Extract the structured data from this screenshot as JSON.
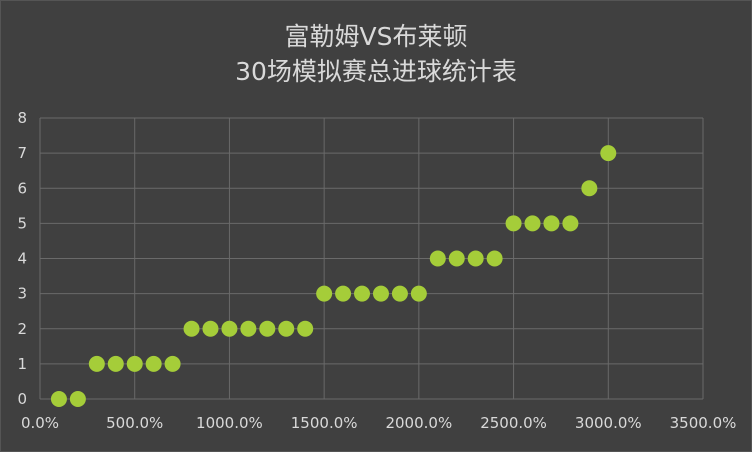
{
  "chart_data": {
    "type": "scatter",
    "title_lines": [
      "富勒姆VS布莱顿",
      "30场模拟赛总进球统计表"
    ],
    "xlabel": "",
    "ylabel": "",
    "xlim": [
      0,
      3500
    ],
    "ylim": [
      0,
      8
    ],
    "x_ticks": [
      0,
      500,
      1000,
      1500,
      2000,
      2500,
      3000,
      3500
    ],
    "x_tick_labels": [
      "0.0%",
      "500.0%",
      "1000.0%",
      "1500.0%",
      "2000.0%",
      "2500.0%",
      "3000.0%",
      "3500.0%"
    ],
    "y_ticks": [
      0,
      1,
      2,
      3,
      4,
      5,
      6,
      7,
      8
    ],
    "y_tick_labels": [
      "0",
      "1",
      "2",
      "3",
      "4",
      "5",
      "6",
      "7",
      "8"
    ],
    "grid": true,
    "series": [
      {
        "color": "#a5cd39",
        "points": [
          {
            "x": 100,
            "y": 0
          },
          {
            "x": 200,
            "y": 0
          },
          {
            "x": 300,
            "y": 1
          },
          {
            "x": 400,
            "y": 1
          },
          {
            "x": 500,
            "y": 1
          },
          {
            "x": 600,
            "y": 1
          },
          {
            "x": 700,
            "y": 1
          },
          {
            "x": 800,
            "y": 2
          },
          {
            "x": 900,
            "y": 2
          },
          {
            "x": 1000,
            "y": 2
          },
          {
            "x": 1100,
            "y": 2
          },
          {
            "x": 1200,
            "y": 2
          },
          {
            "x": 1300,
            "y": 2
          },
          {
            "x": 1400,
            "y": 2
          },
          {
            "x": 1500,
            "y": 3
          },
          {
            "x": 1600,
            "y": 3
          },
          {
            "x": 1700,
            "y": 3
          },
          {
            "x": 1800,
            "y": 3
          },
          {
            "x": 1900,
            "y": 3
          },
          {
            "x": 2000,
            "y": 3
          },
          {
            "x": 2100,
            "y": 4
          },
          {
            "x": 2200,
            "y": 4
          },
          {
            "x": 2300,
            "y": 4
          },
          {
            "x": 2400,
            "y": 4
          },
          {
            "x": 2500,
            "y": 5
          },
          {
            "x": 2600,
            "y": 5
          },
          {
            "x": 2700,
            "y": 5
          },
          {
            "x": 2800,
            "y": 5
          },
          {
            "x": 2900,
            "y": 6
          },
          {
            "x": 3000,
            "y": 7
          }
        ]
      }
    ]
  }
}
